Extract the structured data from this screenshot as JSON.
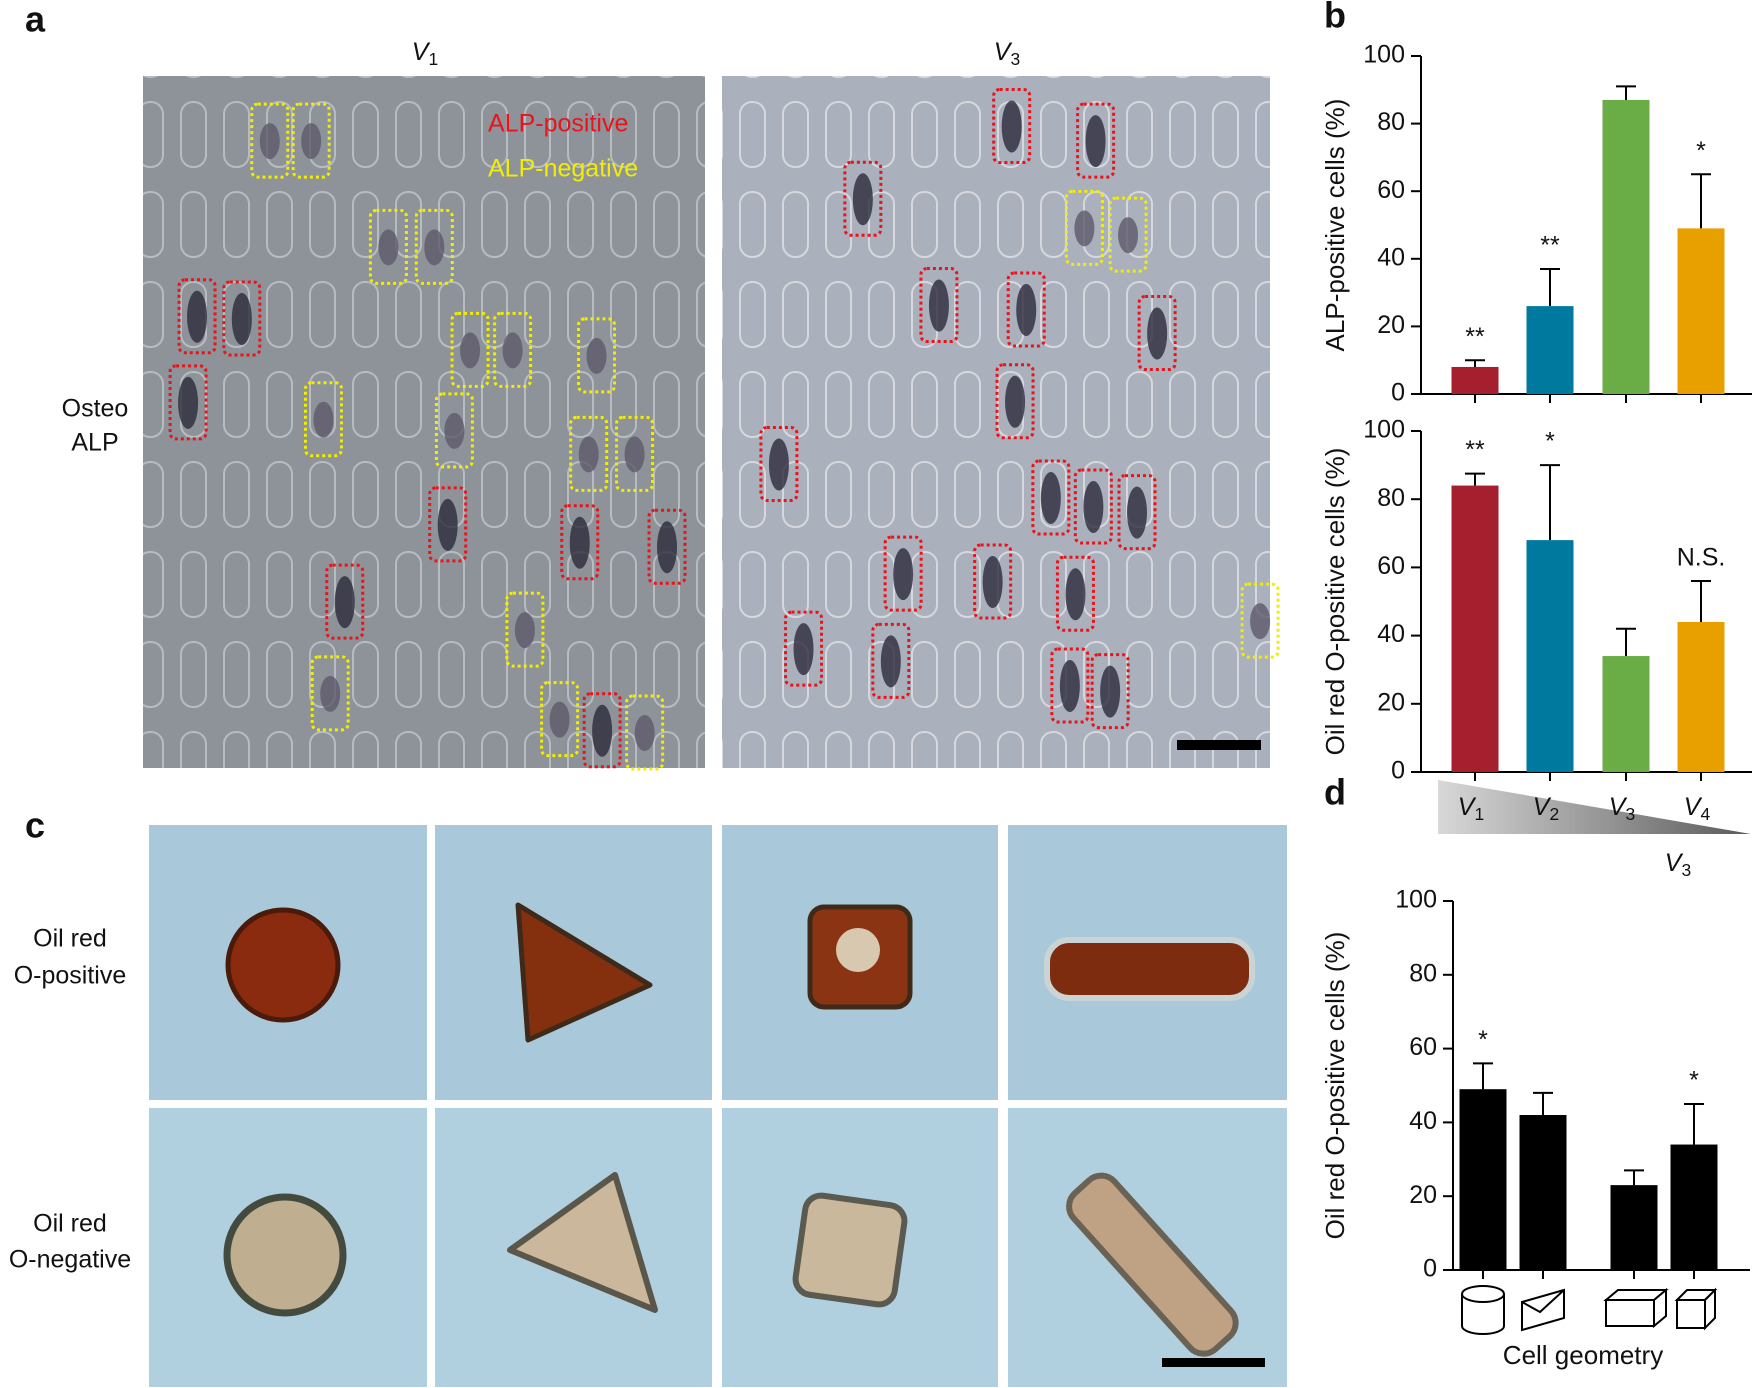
{
  "panel_labels": [
    "a",
    "b",
    "c",
    "d"
  ],
  "panel_a": {
    "columns": [
      "V1",
      "V3"
    ],
    "row_label": [
      "Osteo",
      "ALP"
    ],
    "legend": [
      {
        "text": "ALP-positive",
        "color": "#e8141c"
      },
      {
        "text": "ALP-negative",
        "color": "#f2ee00"
      }
    ]
  },
  "panel_c": {
    "row_labels": [
      [
        "Oil red",
        "O-positive"
      ],
      [
        "Oil red",
        "O-negative"
      ]
    ]
  },
  "chart_data": [
    {
      "type": "bar",
      "y_label": "ALP-positive cells (%)",
      "values": [
        8,
        26,
        87,
        49
      ],
      "errors": [
        2,
        11,
        4,
        16
      ],
      "annotations": [
        "**",
        "**",
        null,
        "*"
      ],
      "colors": [
        "#a51f2e",
        "#00799e",
        "#6aac46",
        "#e8a000"
      ],
      "ylim": [
        0,
        100
      ],
      "yticks": [
        0,
        20,
        40,
        60,
        80,
        100
      ]
    },
    {
      "type": "bar",
      "y_label": "Oil red O-positive cells (%)",
      "categories": [
        "V1",
        "V2",
        "V3",
        "V4"
      ],
      "values": [
        84,
        68,
        34,
        44
      ],
      "errors": [
        3.5,
        22,
        8,
        12
      ],
      "annotations": [
        "**",
        "*",
        null,
        "N.S."
      ],
      "colors": [
        "#a51f2e",
        "#00799e",
        "#6aac46",
        "#e8a000"
      ],
      "ylim": [
        0,
        100
      ],
      "yticks": [
        0,
        20,
        40,
        60,
        80,
        100
      ]
    },
    {
      "type": "bar",
      "title": "V3",
      "y_label": "Oil red O-positive cells (%)",
      "x_label": "Cell geometry",
      "categories": [
        null,
        null,
        null,
        null
      ],
      "values": [
        49,
        42,
        23,
        34
      ],
      "errors": [
        7,
        6,
        4,
        11
      ],
      "annotations": [
        "*",
        null,
        null,
        "*"
      ],
      "colors": [
        "#000000",
        "#000000",
        "#000000",
        "#000000"
      ],
      "ylim": [
        0,
        100
      ],
      "yticks": [
        0,
        20,
        40,
        60,
        80,
        100
      ]
    }
  ]
}
